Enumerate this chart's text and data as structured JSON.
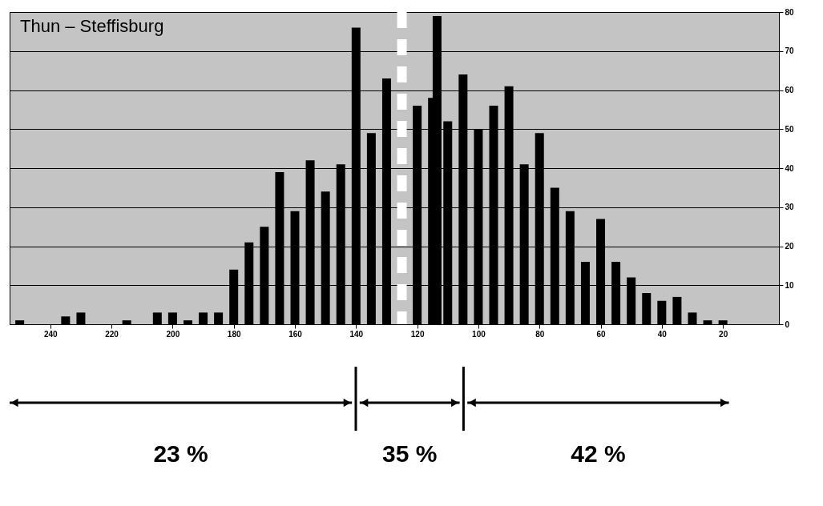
{
  "chart_data": {
    "type": "bar",
    "title": "Thun – Steffisburg",
    "x": [
      250,
      235,
      230,
      215,
      205,
      200,
      195,
      190,
      185,
      180,
      175,
      170,
      165,
      160,
      155,
      150,
      145,
      140,
      135,
      130,
      120,
      115,
      110,
      105,
      100,
      95,
      90,
      85,
      80,
      75,
      70,
      65,
      60,
      55,
      50,
      45,
      40,
      35,
      30,
      25,
      20
    ],
    "series": [
      {
        "color": "#000000",
        "values": [
          1,
          2,
          3,
          1,
          3,
          3,
          1,
          3,
          3,
          14,
          21,
          25,
          39,
          29,
          42,
          34,
          41,
          76,
          49,
          63,
          56,
          58,
          52,
          64,
          50,
          56,
          61,
          41,
          49,
          35,
          29,
          16,
          27,
          16,
          12,
          8,
          6,
          7,
          3,
          1,
          1
        ]
      },
      {
        "color": "#000000",
        "x": [
          113.5
        ],
        "values": [
          79
        ]
      }
    ],
    "xlim": [
      252,
      3
    ],
    "xticks": [
      240,
      220,
      200,
      180,
      160,
      140,
      120,
      100,
      80,
      60,
      40,
      20
    ],
    "ylim": [
      0,
      80
    ],
    "yticks": [
      0,
      10,
      20,
      30,
      40,
      50,
      60,
      70,
      80
    ],
    "grid": "y",
    "ref_lines": [
      {
        "axis": "x",
        "value": 125,
        "label": null,
        "color": "#ffffff",
        "line_style": "dashed"
      }
    ],
    "annotations": [
      "23 %",
      "35 %",
      "42 %"
    ]
  }
}
